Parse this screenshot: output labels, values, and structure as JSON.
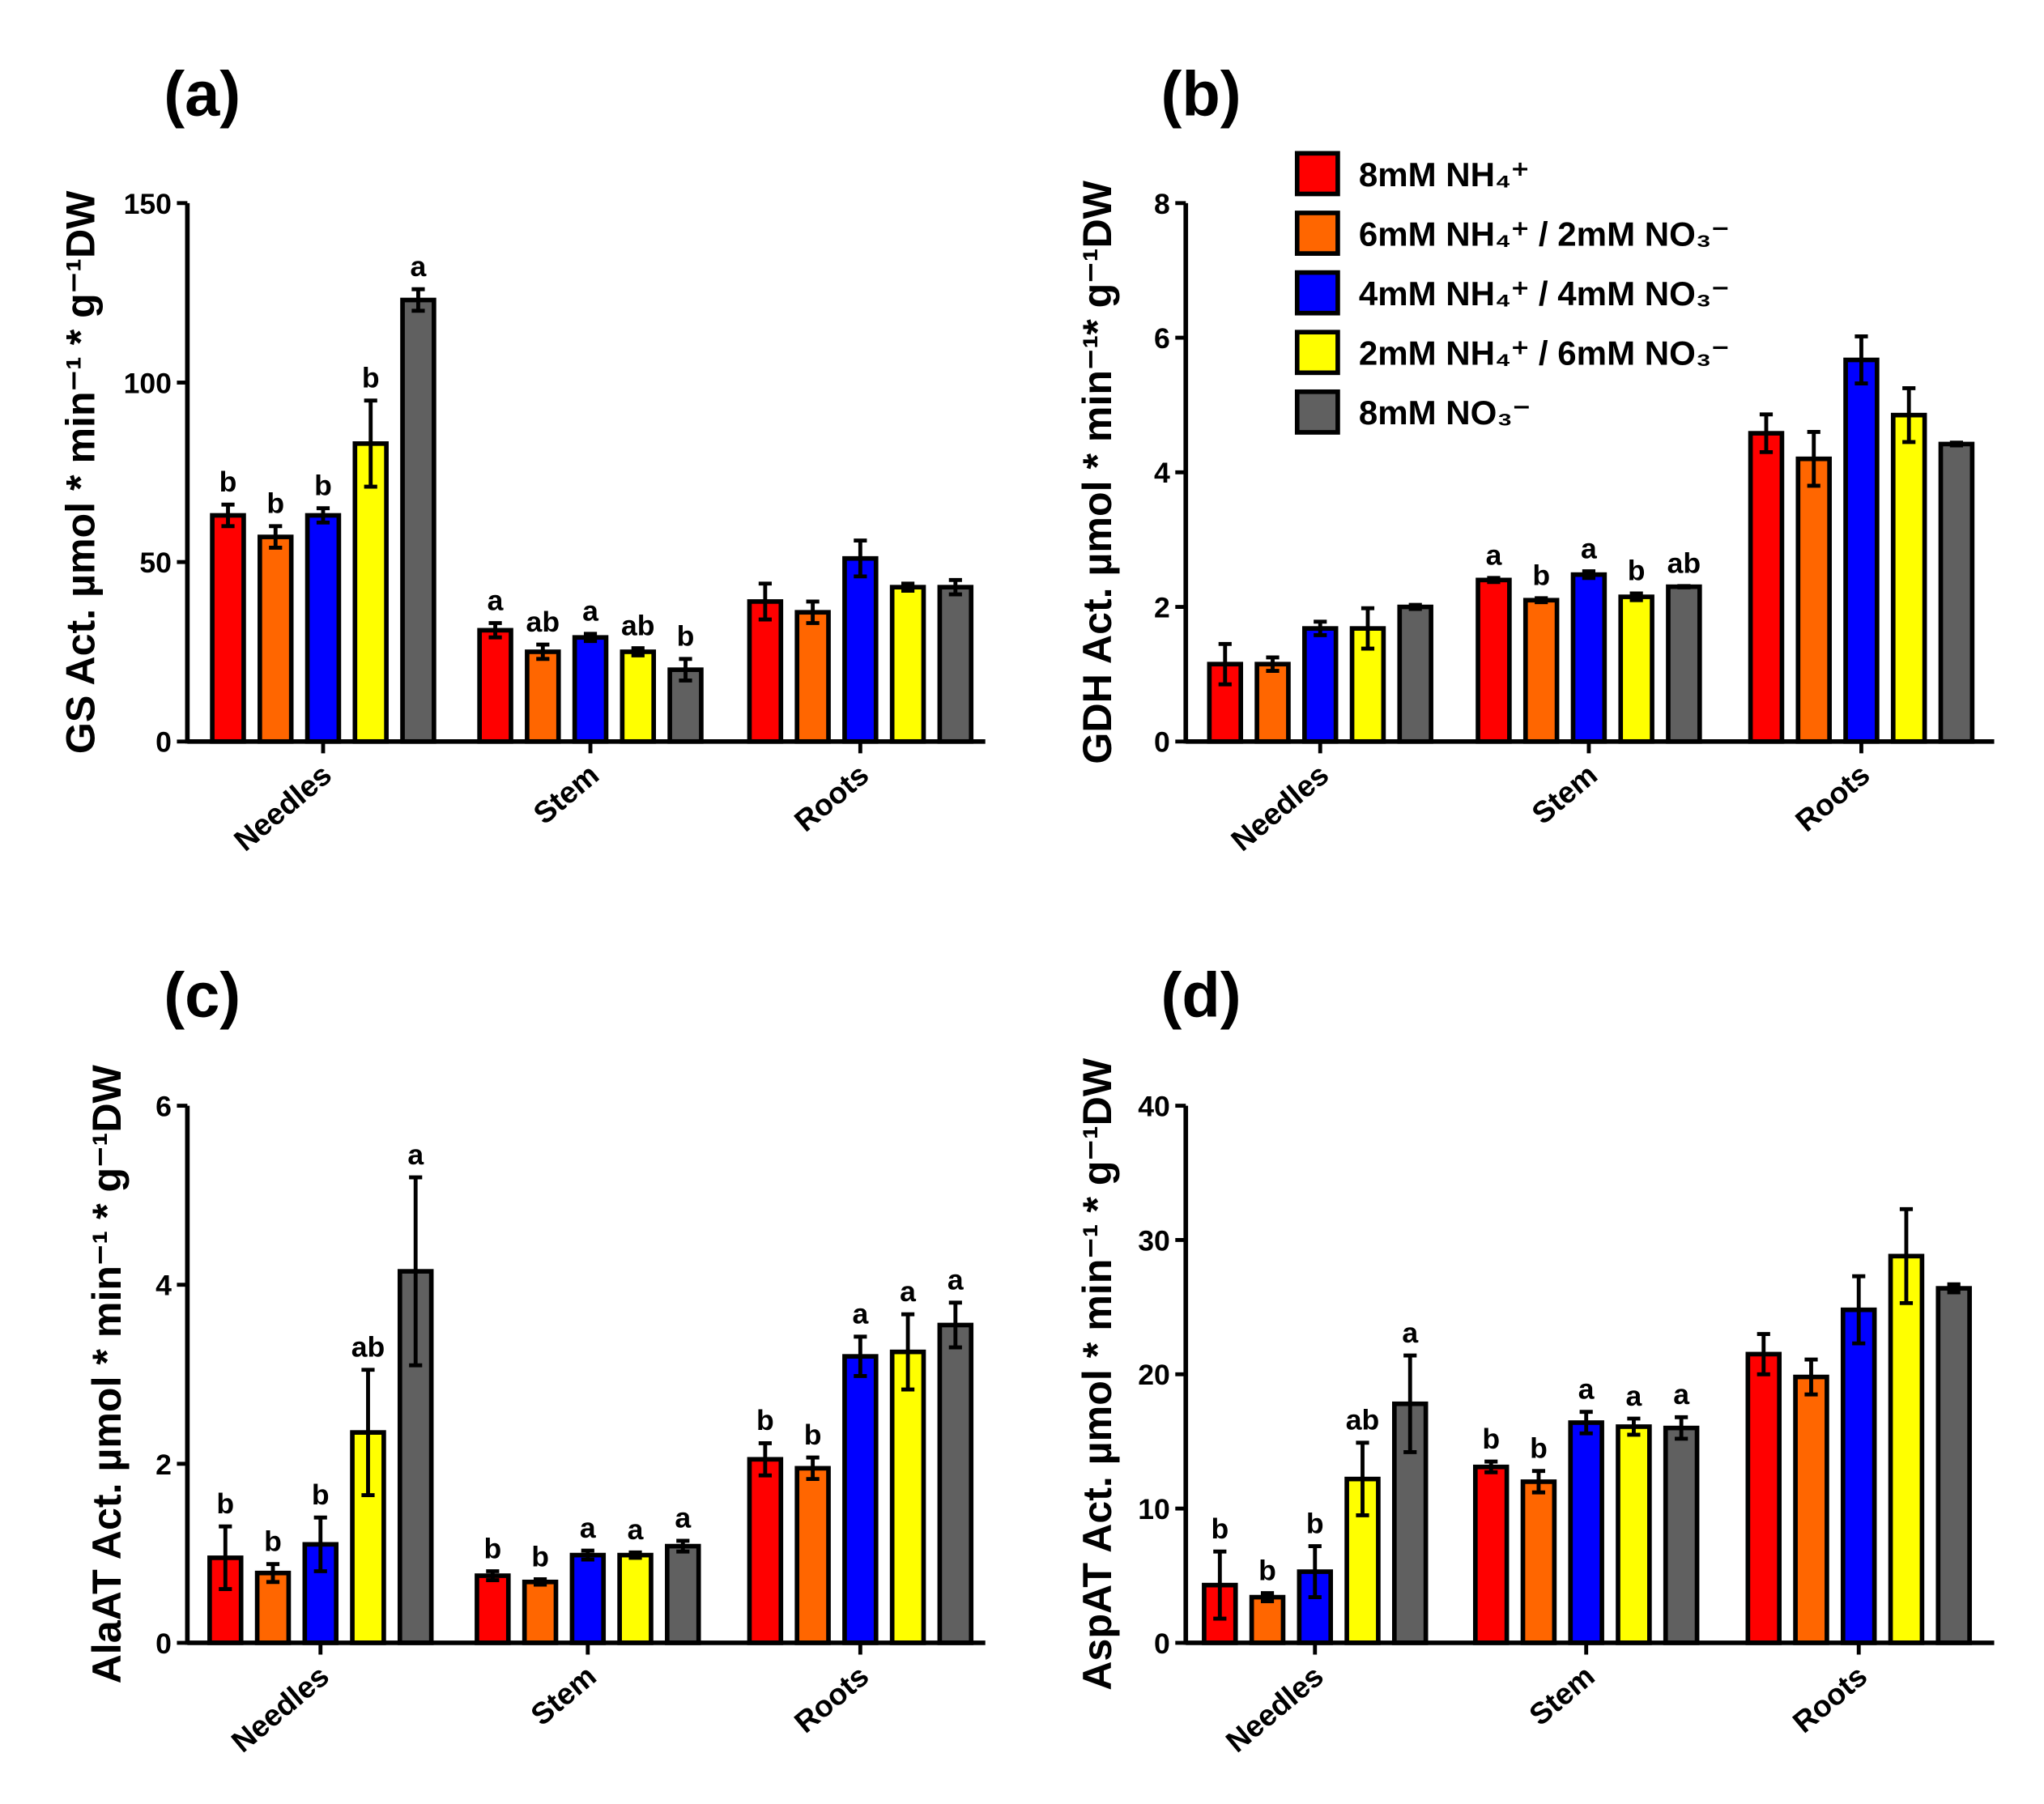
{
  "colors": [
    "#ff0000",
    "#ff6600",
    "#0000ff",
    "#ffff00",
    "#606060"
  ],
  "legend": [
    "8mM NH₄⁺",
    "6mM NH₄⁺ / 2mM NO₃⁻",
    "4mM NH₄⁺ / 4mM NO₃⁻",
    "2mM NH₄⁺ / 6mM NO₃⁻",
    "8mM NO₃⁻"
  ],
  "chart_data": [
    {
      "type": "bar",
      "panel": "(a)",
      "ylabel": "GS Act. µmol * min⁻¹ * g⁻¹DW",
      "categories": [
        "Needles",
        "Stem",
        "Roots"
      ],
      "ylim": [
        0,
        150
      ],
      "yticks": [
        0,
        50,
        100,
        150
      ],
      "series": [
        {
          "name": "8mM NH₄⁺",
          "values": [
            63,
            31,
            39
          ],
          "errors": [
            3,
            2,
            5
          ],
          "letters": [
            "b",
            "a",
            ""
          ]
        },
        {
          "name": "6mM NH₄⁺ / 2mM NO₃⁻",
          "values": [
            57,
            25,
            36
          ],
          "errors": [
            3,
            2,
            3
          ],
          "letters": [
            "b",
            "ab",
            ""
          ]
        },
        {
          "name": "4mM NH₄⁺ / 4mM NO₃⁻",
          "values": [
            63,
            29,
            51
          ],
          "errors": [
            2,
            1,
            5
          ],
          "letters": [
            "b",
            "a",
            ""
          ]
        },
        {
          "name": "2mM NH₄⁺ / 6mM NO₃⁻",
          "values": [
            83,
            25,
            43
          ],
          "errors": [
            12,
            1,
            1
          ],
          "letters": [
            "b",
            "ab",
            ""
          ]
        },
        {
          "name": "8mM NO₃⁻",
          "values": [
            123,
            20,
            43
          ],
          "errors": [
            3,
            3,
            2
          ],
          "letters": [
            "a",
            "b",
            ""
          ]
        }
      ]
    },
    {
      "type": "bar",
      "panel": "(b)",
      "ylabel": "GDH Act. µmol * min⁻¹* g⁻¹DW",
      "categories": [
        "Needles",
        "Stem",
        "Roots"
      ],
      "ylim": [
        0,
        8
      ],
      "yticks": [
        0,
        2,
        4,
        6,
        8
      ],
      "legend_position": "top-left",
      "series": [
        {
          "name": "8mM NH₄⁺",
          "values": [
            1.15,
            2.4,
            4.58
          ],
          "errors": [
            0.3,
            0.03,
            0.28
          ],
          "letters": [
            "",
            "a",
            ""
          ]
        },
        {
          "name": "6mM NH₄⁺ / 2mM NO₃⁻",
          "values": [
            1.15,
            2.1,
            4.2
          ],
          "errors": [
            0.1,
            0.03,
            0.4
          ],
          "letters": [
            "",
            "b",
            ""
          ]
        },
        {
          "name": "4mM NH₄⁺ / 4mM NO₃⁻",
          "values": [
            1.68,
            2.48,
            5.67
          ],
          "errors": [
            0.1,
            0.05,
            0.35
          ],
          "letters": [
            "",
            "a",
            ""
          ]
        },
        {
          "name": "2mM NH₄⁺ / 6mM NO₃⁻",
          "values": [
            1.68,
            2.15,
            4.85
          ],
          "errors": [
            0.3,
            0.05,
            0.4
          ],
          "letters": [
            "",
            "b",
            ""
          ]
        },
        {
          "name": "8mM NO₃⁻",
          "values": [
            2.0,
            2.3,
            4.42
          ],
          "errors": [
            0.03,
            0.01,
            0.02
          ],
          "letters": [
            "",
            "ab",
            ""
          ]
        }
      ]
    },
    {
      "type": "bar",
      "panel": "(c)",
      "ylabel": "AlaAT Act. µmol * min⁻¹ * g⁻¹DW",
      "categories": [
        "Needles",
        "Stem",
        "Roots"
      ],
      "ylim": [
        0,
        6
      ],
      "yticks": [
        0,
        2,
        4,
        6
      ],
      "series": [
        {
          "name": "8mM NH₄⁺",
          "values": [
            0.95,
            0.75,
            2.05
          ],
          "errors": [
            0.35,
            0.05,
            0.18
          ],
          "letters": [
            "b",
            "b",
            "b"
          ]
        },
        {
          "name": "6mM NH₄⁺ / 2mM NO₃⁻",
          "values": [
            0.78,
            0.68,
            1.95
          ],
          "errors": [
            0.1,
            0.03,
            0.12
          ],
          "letters": [
            "b",
            "b",
            "b"
          ]
        },
        {
          "name": "4mM NH₄⁺ / 4mM NO₃⁻",
          "values": [
            1.1,
            0.98,
            3.2
          ],
          "errors": [
            0.3,
            0.05,
            0.22
          ],
          "letters": [
            "b",
            "a",
            "a"
          ]
        },
        {
          "name": "2mM NH₄⁺ / 6mM NO₃⁻",
          "values": [
            2.35,
            0.98,
            3.25
          ],
          "errors": [
            0.7,
            0.03,
            0.42
          ],
          "letters": [
            "ab",
            "a",
            "a"
          ]
        },
        {
          "name": "8mM NO₃⁻",
          "values": [
            4.15,
            1.08,
            3.55
          ],
          "errors": [
            1.05,
            0.06,
            0.25
          ],
          "letters": [
            "a",
            "a",
            "a"
          ]
        }
      ]
    },
    {
      "type": "bar",
      "panel": "(d)",
      "ylabel": "AspAT Act. µmol * min⁻¹ * g⁻¹DW",
      "categories": [
        "Needles",
        "Stem",
        "Roots"
      ],
      "ylim": [
        0,
        40
      ],
      "yticks": [
        0,
        10,
        20,
        30,
        40
      ],
      "series": [
        {
          "name": "8mM NH₄⁺",
          "values": [
            4.3,
            13.1,
            21.5
          ],
          "errors": [
            2.5,
            0.4,
            1.5
          ],
          "letters": [
            "b",
            "b",
            ""
          ]
        },
        {
          "name": "6mM NH₄⁺ / 2mM NO₃⁻",
          "values": [
            3.4,
            12.0,
            19.8
          ],
          "errors": [
            0.3,
            0.8,
            1.3
          ],
          "letters": [
            "b",
            "b",
            ""
          ]
        },
        {
          "name": "4mM NH₄⁺ / 4mM NO₃⁻",
          "values": [
            5.3,
            16.4,
            24.8
          ],
          "errors": [
            1.9,
            0.8,
            2.5
          ],
          "letters": [
            "b",
            "a",
            ""
          ]
        },
        {
          "name": "2mM NH₄⁺ / 6mM NO₃⁻",
          "values": [
            12.2,
            16.1,
            28.8
          ],
          "errors": [
            2.7,
            0.6,
            3.5
          ],
          "letters": [
            "ab",
            "a",
            ""
          ]
        },
        {
          "name": "8mM NO₃⁻",
          "values": [
            17.8,
            16.0,
            26.4
          ],
          "errors": [
            3.6,
            0.8,
            0.3
          ],
          "letters": [
            "a",
            "a",
            ""
          ]
        }
      ]
    }
  ]
}
